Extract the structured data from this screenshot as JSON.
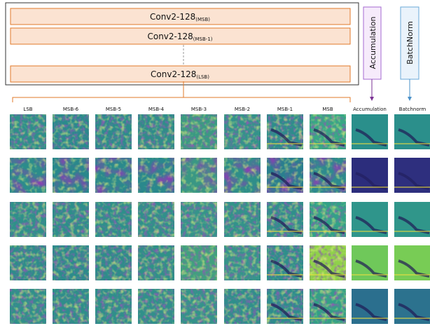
{
  "diagram": {
    "conv_boxes": [
      {
        "label": "Conv2-128",
        "sub": "(MSB)"
      },
      {
        "label": "Conv2-128",
        "sub": "(MSB-1)"
      },
      {
        "label": "Conv2-128",
        "sub": "(LSB)"
      }
    ],
    "side_boxes": [
      "Accumulation",
      "BatchNorm"
    ],
    "columns": [
      "LSB",
      "MSB-6",
      "MSB-5",
      "MSB-4",
      "MSB-3",
      "MSB-2",
      "MSB-1",
      "MSB",
      "Accumulation",
      "Batchnorm"
    ]
  }
}
